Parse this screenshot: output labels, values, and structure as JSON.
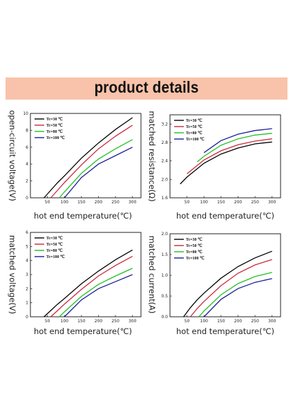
{
  "banner": {
    "title": "product details",
    "color": "#f8c3aa"
  },
  "chart_data": [
    {
      "type": "line",
      "ylabel": "open-circuit voltage(V)",
      "xlabel": "hot end temperature(℃)",
      "xlim": [
        0,
        325
      ],
      "ylim": [
        0,
        10
      ],
      "xticks": [
        50,
        100,
        150,
        200,
        250,
        300
      ],
      "yticks": [
        0,
        2,
        4,
        6,
        8,
        10
      ],
      "legend_position": "top-left",
      "series": [
        {
          "name": "Tc=30 ℃",
          "color": "#000000",
          "x": [
            40,
            60,
            80,
            100,
            150,
            200,
            250,
            300
          ],
          "y": [
            0,
            0.9,
            1.8,
            2.6,
            4.7,
            6.5,
            8.1,
            9.5
          ]
        },
        {
          "name": "Tc=50 ℃",
          "color": "#c8283c",
          "x": [
            60,
            80,
            100,
            150,
            200,
            250,
            300
          ],
          "y": [
            0,
            0.9,
            1.8,
            3.9,
            5.8,
            7.3,
            8.6
          ]
        },
        {
          "name": "Tc=80 ℃",
          "color": "#22c022",
          "x": [
            85,
            100,
            150,
            200,
            250,
            300
          ],
          "y": [
            0,
            0.7,
            2.9,
            4.6,
            5.8,
            6.9
          ]
        },
        {
          "name": "Tc=100 ℃",
          "color": "#1a1a9a",
          "x": [
            100,
            150,
            200,
            250,
            300
          ],
          "y": [
            0,
            2.4,
            4.0,
            5.0,
            6.0
          ]
        }
      ]
    },
    {
      "type": "line",
      "ylabel": "matched resistance(Ω)",
      "xlabel": "hot end temperature(℃)",
      "xlim": [
        0,
        325
      ],
      "ylim": [
        1.6,
        3.4
      ],
      "xticks": [
        50,
        100,
        150,
        200,
        250,
        300
      ],
      "yticks": [
        1.6,
        2.0,
        2.4,
        2.8,
        3.2
      ],
      "legend_position": "top-left",
      "series": [
        {
          "name": "Tc=30 ℃",
          "color": "#000000",
          "x": [
            30,
            50,
            100,
            150,
            200,
            250,
            300
          ],
          "y": [
            1.9,
            2.05,
            2.35,
            2.55,
            2.68,
            2.77,
            2.81
          ]
        },
        {
          "name": "Tc=50 ℃",
          "color": "#c8283c",
          "x": [
            50,
            100,
            150,
            200,
            250,
            300
          ],
          "y": [
            2.12,
            2.42,
            2.62,
            2.75,
            2.83,
            2.88
          ]
        },
        {
          "name": "Tc=80 ℃",
          "color": "#22c022",
          "x": [
            80,
            100,
            150,
            200,
            250,
            300
          ],
          "y": [
            2.38,
            2.5,
            2.74,
            2.88,
            2.96,
            3.0
          ]
        },
        {
          "name": "Tc=100 ℃",
          "color": "#1a1a9a",
          "x": [
            100,
            150,
            200,
            250,
            300
          ],
          "y": [
            2.58,
            2.84,
            2.98,
            3.06,
            3.1
          ]
        }
      ]
    },
    {
      "type": "line",
      "ylabel": "matched voltage(V)",
      "xlabel": "hot end temperature(℃)",
      "xlim": [
        0,
        325
      ],
      "ylim": [
        0,
        6
      ],
      "xticks": [
        50,
        100,
        150,
        200,
        250,
        300
      ],
      "yticks": [
        0,
        1,
        2,
        3,
        4,
        5,
        6
      ],
      "legend_position": "top-left",
      "series": [
        {
          "name": "Tc=30 ℃",
          "color": "#000000",
          "x": [
            40,
            60,
            80,
            100,
            150,
            200,
            250,
            300
          ],
          "y": [
            0,
            0.45,
            0.9,
            1.3,
            2.35,
            3.25,
            4.05,
            4.75
          ]
        },
        {
          "name": "Tc=50 ℃",
          "color": "#c8283c",
          "x": [
            60,
            80,
            100,
            150,
            200,
            250,
            300
          ],
          "y": [
            0,
            0.45,
            0.9,
            1.95,
            2.9,
            3.65,
            4.3
          ]
        },
        {
          "name": "Tc=80 ℃",
          "color": "#22c022",
          "x": [
            85,
            100,
            150,
            200,
            250,
            300
          ],
          "y": [
            0,
            0.35,
            1.45,
            2.3,
            2.9,
            3.45
          ]
        },
        {
          "name": "Tc=100 ℃",
          "color": "#1a1a9a",
          "x": [
            100,
            150,
            200,
            250,
            300
          ],
          "y": [
            0,
            1.2,
            2.0,
            2.5,
            3.0
          ]
        }
      ]
    },
    {
      "type": "line",
      "ylabel": "matched current(A)",
      "xlabel": "hot end temperature(℃)",
      "xlim": [
        0,
        325
      ],
      "ylim": [
        0,
        2
      ],
      "xticks": [
        50,
        100,
        150,
        200,
        250,
        300
      ],
      "yticks": [
        0.0,
        0.5,
        1.0,
        1.5,
        2.0
      ],
      "legend_position": "top-left",
      "series": [
        {
          "name": "Tc=30 ℃",
          "color": "#000000",
          "x": [
            40,
            60,
            80,
            100,
            150,
            200,
            250,
            300
          ],
          "y": [
            0,
            0.22,
            0.41,
            0.57,
            0.93,
            1.21,
            1.42,
            1.58
          ]
        },
        {
          "name": "Tc=50 ℃",
          "color": "#c8283c",
          "x": [
            60,
            80,
            100,
            150,
            200,
            250,
            300
          ],
          "y": [
            0,
            0.2,
            0.37,
            0.75,
            1.05,
            1.25,
            1.38
          ]
        },
        {
          "name": "Tc=80 ℃",
          "color": "#22c022",
          "x": [
            85,
            100,
            150,
            200,
            250,
            300
          ],
          "y": [
            0,
            0.14,
            0.53,
            0.8,
            0.97,
            1.07
          ]
        },
        {
          "name": "Tc=100 ℃",
          "color": "#1a1a9a",
          "x": [
            100,
            150,
            200,
            250,
            300
          ],
          "y": [
            0,
            0.42,
            0.68,
            0.83,
            0.92
          ]
        }
      ]
    }
  ]
}
